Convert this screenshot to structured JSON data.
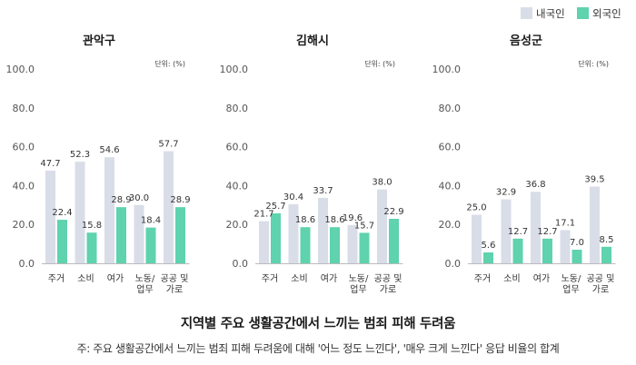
{
  "legend": {
    "domestic": "내국인",
    "foreign": "외국인"
  },
  "colors": {
    "domestic": "#d9dde8",
    "foreign": "#5fd2ae"
  },
  "figure_title": "지역별 주요 생활공간에서 느끼는 범죄 피해 두려움",
  "note": "주: 주요 생활공간에서 느끼는 범죄 피해 두려움에 대해 '어느 정도 느낀다', '매우 크게 느낀다' 응답 비율의 합계",
  "chart_data": [
    {
      "type": "bar",
      "title": "관악구",
      "unit_label": "단위: (%)",
      "categories": [
        "주거",
        "소비",
        "여가",
        "노동/\n업무",
        "공공 및\n가로"
      ],
      "series": [
        {
          "name": "내국인",
          "values": [
            47.7,
            52.3,
            54.6,
            30.0,
            57.7
          ]
        },
        {
          "name": "외국인",
          "values": [
            22.4,
            15.8,
            28.9,
            18.4,
            28.9
          ]
        }
      ],
      "ylim": [
        0,
        100
      ],
      "yticks": [
        "0.0",
        "20.0",
        "40.0",
        "60.0",
        "80.0",
        "100.0"
      ],
      "value_labels": [
        [
          "47.7",
          "52.3",
          "54.6",
          "30.0",
          "57.7"
        ],
        [
          "22.4",
          "15.8",
          "28.9",
          "18.4",
          "28.9"
        ]
      ]
    },
    {
      "type": "bar",
      "title": "김해시",
      "unit_label": "단위: (%)",
      "categories": [
        "주거",
        "소비",
        "여가",
        "노동/\n업무",
        "공공 및\n가로"
      ],
      "series": [
        {
          "name": "내국인",
          "values": [
            21.7,
            30.4,
            33.7,
            19.6,
            38.0
          ]
        },
        {
          "name": "외국인",
          "values": [
            25.7,
            18.6,
            18.6,
            15.7,
            22.9
          ]
        }
      ],
      "ylim": [
        0,
        100
      ],
      "yticks": [
        "0.0",
        "20.0",
        "40.0",
        "60.0",
        "80.0",
        "100.0"
      ],
      "value_labels": [
        [
          "21.7",
          "30.4",
          "33.7",
          "19.6",
          "38.0"
        ],
        [
          "25.7",
          "18.6",
          "18.6",
          "15.7",
          "22.9"
        ]
      ]
    },
    {
      "type": "bar",
      "title": "음성군",
      "unit_label": "단위: (%)",
      "categories": [
        "주거",
        "소비",
        "여가",
        "노동/\n업무",
        "공공 및\n가로"
      ],
      "series": [
        {
          "name": "내국인",
          "values": [
            25.0,
            32.9,
            36.8,
            17.1,
            39.5
          ]
        },
        {
          "name": "외국인",
          "values": [
            5.6,
            12.7,
            12.7,
            7.0,
            8.5
          ]
        }
      ],
      "ylim": [
        0,
        100
      ],
      "yticks": [
        "0.0",
        "20.0",
        "40.0",
        "60.0",
        "80.0",
        "100.0"
      ],
      "value_labels": [
        [
          "25.0",
          "32.9",
          "36.8",
          "17.1",
          "39.5"
        ],
        [
          "5.6",
          "12.7",
          "12.7",
          "7.0",
          "8.5"
        ]
      ]
    }
  ]
}
